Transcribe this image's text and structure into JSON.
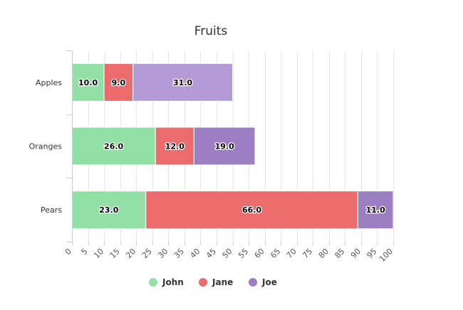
{
  "chart_data": {
    "type": "bar",
    "orientation": "horizontal",
    "stacked": true,
    "title": "Fruits",
    "categories": [
      "Apples",
      "Oranges",
      "Pears"
    ],
    "series": [
      {
        "name": "John",
        "color": "#93e0a7",
        "values": [
          10,
          26,
          23
        ]
      },
      {
        "name": "Jane",
        "color": "#ec6b6c",
        "values": [
          9,
          12,
          66
        ]
      },
      {
        "name": "Joe",
        "color": "#9b7fc2",
        "values": [
          31,
          19,
          11
        ]
      }
    ],
    "xlim": [
      0,
      100
    ],
    "xticks": [
      0,
      5,
      10,
      15,
      20,
      25,
      30,
      35,
      40,
      45,
      50,
      55,
      60,
      65,
      70,
      75,
      80,
      85,
      90,
      95,
      100
    ],
    "grid": true,
    "legend": "bottom",
    "highlight": {
      "category": "Apples",
      "series": "Joe",
      "color": "#b59ad8"
    }
  }
}
